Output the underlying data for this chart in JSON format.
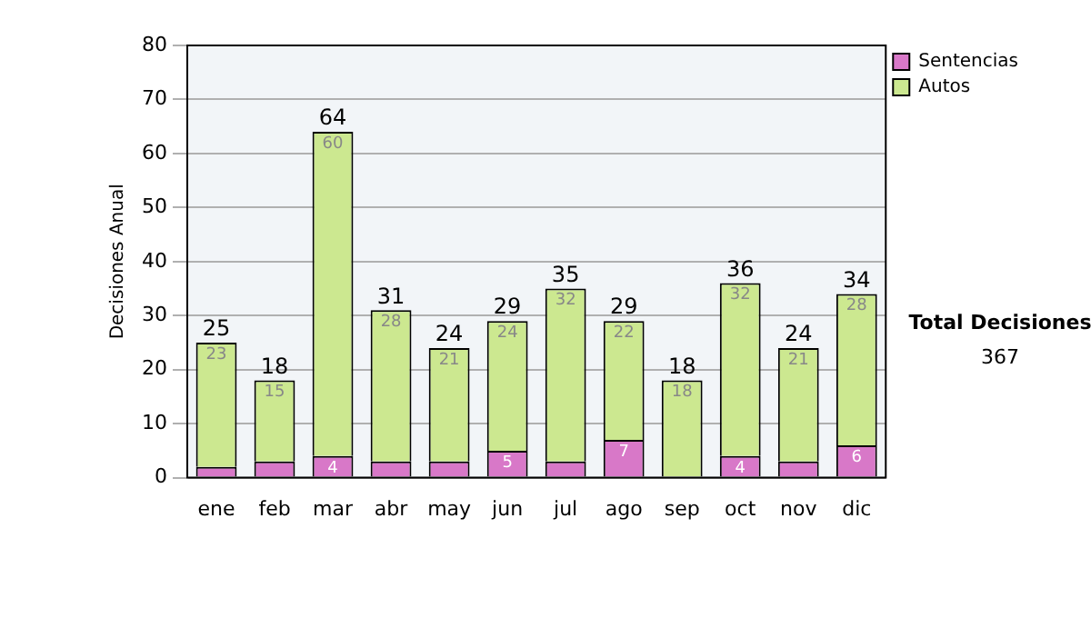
{
  "chart_data": {
    "type": "bar",
    "ylabel": "Decisiones Anual",
    "categories": [
      "ene",
      "feb",
      "mar",
      "abr",
      "may",
      "jun",
      "jul",
      "ago",
      "sep",
      "oct",
      "nov",
      "dic"
    ],
    "stacked": true,
    "series": [
      {
        "name": "Sentencias",
        "color": "#d878c8",
        "values": [
          2,
          3,
          4,
          3,
          3,
          5,
          3,
          7,
          0,
          4,
          3,
          6
        ],
        "value_labels": [
          null,
          null,
          "4",
          null,
          null,
          "5",
          null,
          "7",
          null,
          "4",
          null,
          "6"
        ]
      },
      {
        "name": "Autos",
        "color": "#cce890",
        "values": [
          23,
          15,
          60,
          28,
          21,
          24,
          32,
          22,
          18,
          32,
          21,
          28
        ],
        "value_labels": [
          "23",
          "15",
          "60",
          "28",
          "21",
          "24",
          "32",
          "22",
          "18",
          "32",
          "21",
          "28"
        ]
      }
    ],
    "totals": [
      "25",
      "18",
      "64",
      "31",
      "24",
      "29",
      "35",
      "29",
      "18",
      "36",
      "24",
      "34"
    ],
    "ylim": [
      0,
      80
    ],
    "yticks": [
      0,
      10,
      20,
      30,
      40,
      50,
      60,
      70,
      80
    ],
    "grid": "y",
    "legend": "right",
    "annotations": [
      "Total Decisiones",
      "367"
    ]
  }
}
